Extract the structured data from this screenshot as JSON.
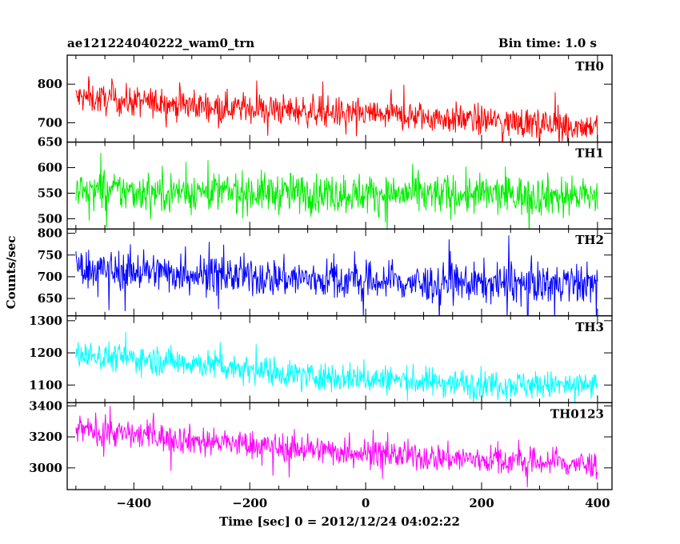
{
  "header": {
    "title": "ae121224040222_wam0_trn",
    "bin_time": "Bin time: 1.0 s"
  },
  "chart_data": [
    {
      "type": "line",
      "series": [
        {
          "name": "TH0",
          "color": "#ff0000"
        }
      ],
      "ylim": [
        650,
        875
      ],
      "yticks": [
        650,
        700,
        800
      ],
      "trend": [
        [
          -500,
          765
        ],
        [
          -300,
          745
        ],
        [
          -100,
          730
        ],
        [
          100,
          715
        ],
        [
          400,
          690
        ]
      ],
      "noise": 28,
      "xlim": [
        -515,
        425
      ]
    },
    {
      "type": "line",
      "series": [
        {
          "name": "TH1",
          "color": "#00ee00"
        }
      ],
      "ylim": [
        480,
        650
      ],
      "yticks": [
        500,
        550,
        600
      ],
      "trend": [
        [
          -500,
          555
        ],
        [
          -100,
          550
        ],
        [
          400,
          545
        ]
      ],
      "noise": 28,
      "xlim": [
        -515,
        425
      ]
    },
    {
      "type": "line",
      "series": [
        {
          "name": "TH2",
          "color": "#0000ff"
        }
      ],
      "ylim": [
        610,
        810
      ],
      "yticks": [
        650,
        700,
        750,
        800
      ],
      "trend": [
        [
          -500,
          720
        ],
        [
          -200,
          700
        ],
        [
          100,
          685
        ],
        [
          400,
          685
        ]
      ],
      "noise": 32,
      "xlim": [
        -515,
        425
      ]
    },
    {
      "type": "line",
      "series": [
        {
          "name": "TH3",
          "color": "#00ffff"
        }
      ],
      "ylim": [
        1045,
        1315
      ],
      "yticks": [
        1100,
        1200,
        1300
      ],
      "trend": [
        [
          -500,
          1195
        ],
        [
          -300,
          1170
        ],
        [
          -100,
          1130
        ],
        [
          100,
          1110
        ],
        [
          400,
          1095
        ]
      ],
      "noise": 32,
      "xlim": [
        -515,
        425
      ]
    },
    {
      "type": "line",
      "series": [
        {
          "name": "TH0123",
          "color": "#ff00ff"
        }
      ],
      "ylim": [
        2860,
        3420
      ],
      "yticks": [
        3000,
        3200,
        3400
      ],
      "trend": [
        [
          -500,
          3250
        ],
        [
          -300,
          3180
        ],
        [
          -100,
          3120
        ],
        [
          100,
          3070
        ],
        [
          400,
          3020
        ]
      ],
      "noise": 65,
      "xlim": [
        -515,
        425
      ]
    }
  ],
  "axes": {
    "xlabel": "Time [sec] 0 = 2012/12/24 04:02:22",
    "ylabel": "Counts/sec",
    "xticks": [
      -400,
      -200,
      0,
      200,
      400
    ],
    "x_range": [
      -500,
      400
    ]
  }
}
